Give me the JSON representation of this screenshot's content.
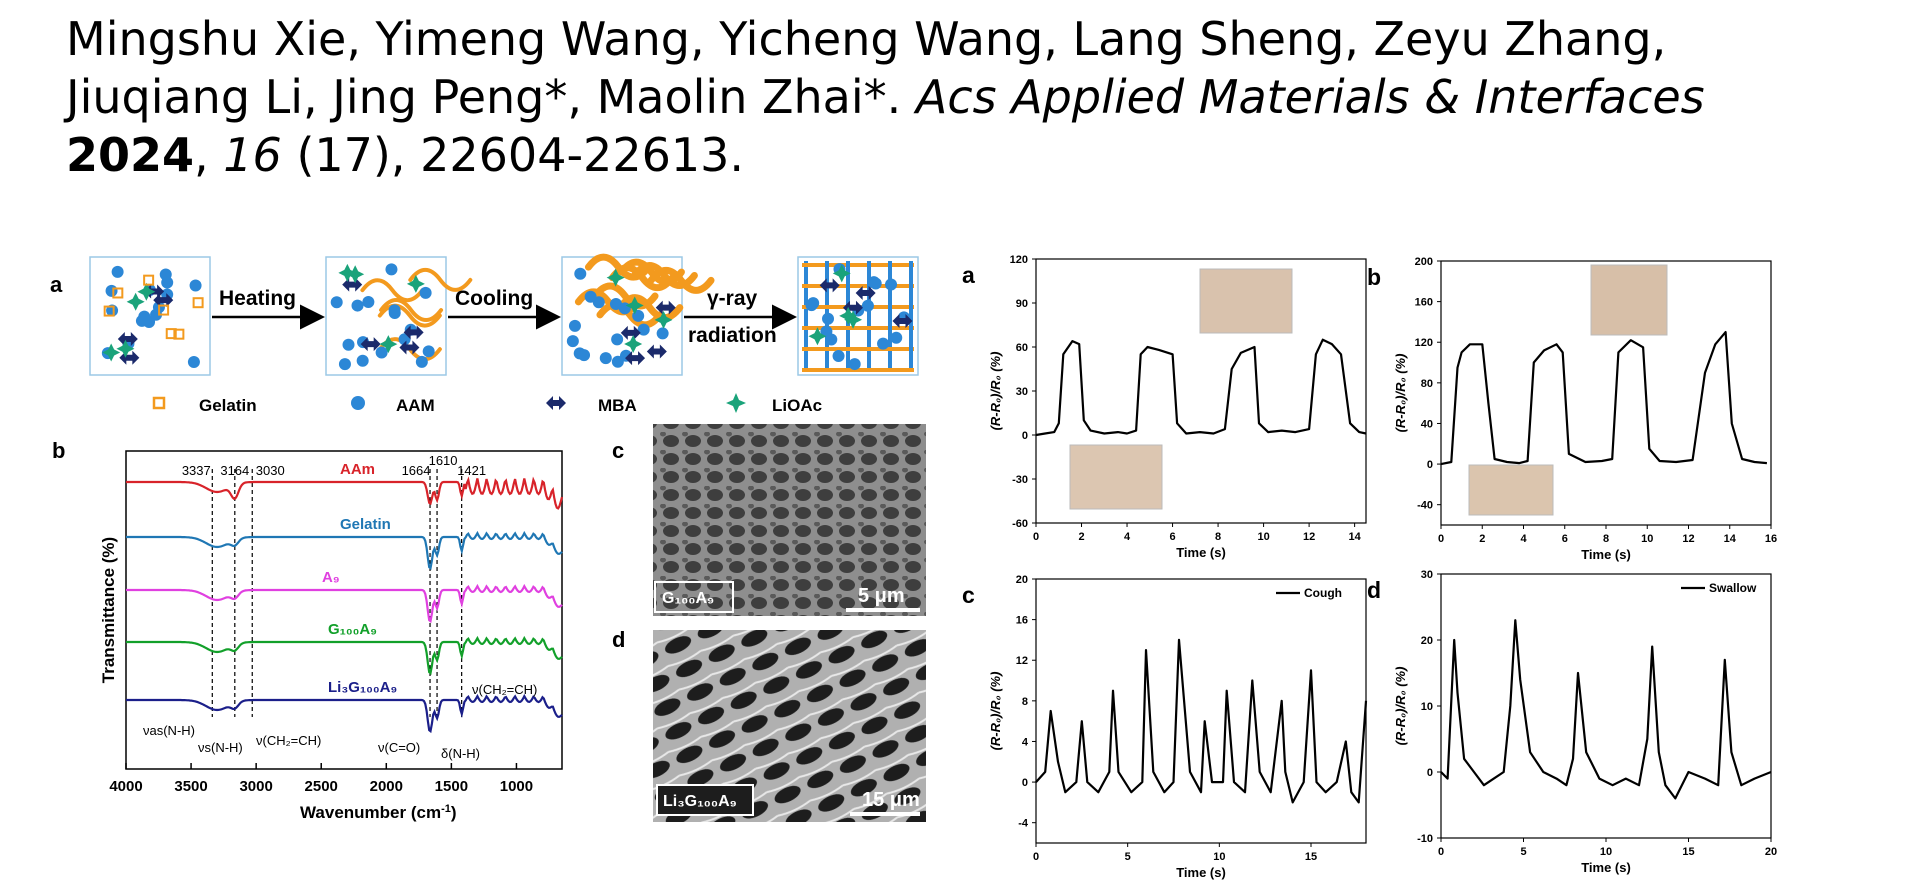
{
  "citation": {
    "authors": "Mingshu Xie, Yimeng Wang, Yicheng Wang, Lang Sheng, Zeyu Zhang, Jiuqiang Li, Jing Peng*, Maolin Zhai*.",
    "journal": "Acs Applied Materials & Interfaces",
    "year": "2024",
    "volume": "16",
    "issue_pages": "(17), 22604-22613."
  },
  "scheme": {
    "panel": "a",
    "steps": [
      "Heating",
      "Cooling",
      "γ-ray",
      "radiation"
    ],
    "legend": [
      "Gelatin",
      "AAM",
      "MBA",
      "LiOAc"
    ],
    "colors": {
      "gelatin": "#f39a1e",
      "aam": "#2c87d6",
      "mba": "#1b2a6b",
      "lioac": "#1aa37a",
      "chain": "#f39a1e"
    }
  },
  "ftir": {
    "panel": "b",
    "ylabel": "Transmittance (%)",
    "xlabel": "Wavenumber (cm",
    "xlabel_sup": "-1",
    "xlabel_end": ")",
    "xticks": [
      "4000",
      "3500",
      "3000",
      "2500",
      "2000",
      "1500",
      "1000"
    ],
    "peaks": [
      "3337",
      "3164",
      "3030",
      "1664",
      "1610",
      "1421"
    ],
    "series": [
      {
        "name": "AAm",
        "color": "#d8232a"
      },
      {
        "name": "Gelatin",
        "color": "#1f77b4"
      },
      {
        "name": "A₉",
        "color": "#e040e0"
      },
      {
        "name": "G₁₀₀A₉",
        "color": "#12a02a"
      },
      {
        "name": "Li₃G₁₀₀A₉",
        "color": "#1b1f8a"
      }
    ],
    "annotations": [
      "νas(N-H)",
      "νs(N-H)",
      "ν(CH₂=CH)",
      "ν(C=O)",
      "δ(N-H)",
      "ν(CH₂=CH)"
    ]
  },
  "sem": {
    "c": {
      "panel": "c",
      "label": "G₁₀₀A₉",
      "scale": "5 μm"
    },
    "d": {
      "panel": "d",
      "label": "Li₃G₁₀₀A₉",
      "scale": "15 μm"
    }
  },
  "chart_data": [
    {
      "type": "line",
      "panel": "a",
      "xlabel": "Time (s)",
      "ylabel": "(R-R₀)/R₀ (%)",
      "xlim": [
        0,
        14.5
      ],
      "ylim": [
        -60,
        120
      ],
      "xticks": [
        0,
        2,
        4,
        6,
        8,
        10,
        12,
        14
      ],
      "yticks": [
        -60,
        -30,
        0,
        30,
        60,
        90,
        120
      ],
      "x": [
        0,
        0.4,
        0.8,
        1.0,
        1.2,
        1.6,
        1.9,
        2.1,
        2.4,
        3.0,
        3.6,
        4.0,
        4.4,
        4.6,
        4.9,
        5.4,
        6.0,
        6.2,
        6.6,
        7.2,
        7.8,
        8.3,
        8.6,
        9.0,
        9.6,
        9.8,
        10.2,
        10.8,
        11.4,
        12.0,
        12.3,
        12.6,
        13.0,
        13.4,
        13.8,
        14.2,
        14.5
      ],
      "y": [
        0,
        1,
        2,
        8,
        55,
        64,
        62,
        10,
        3,
        1,
        2,
        1,
        3,
        55,
        60,
        58,
        55,
        8,
        1,
        2,
        1,
        4,
        45,
        56,
        60,
        8,
        2,
        3,
        2,
        4,
        55,
        65,
        62,
        55,
        8,
        2,
        1
      ]
    },
    {
      "type": "line",
      "panel": "b",
      "xlabel": "Time (s)",
      "ylabel": "(R-R₀)/R₀ (%)",
      "xlim": [
        0,
        16
      ],
      "ylim": [
        -60,
        200
      ],
      "xticks": [
        0,
        2,
        4,
        6,
        8,
        10,
        12,
        14,
        16
      ],
      "yticks": [
        -40,
        0,
        40,
        80,
        120,
        160,
        200
      ],
      "x": [
        0,
        0.5,
        0.8,
        1.0,
        1.4,
        2.0,
        2.3,
        2.6,
        3.2,
        3.8,
        4.2,
        4.5,
        5.0,
        5.6,
        5.9,
        6.2,
        7.0,
        7.8,
        8.3,
        8.6,
        9.2,
        9.8,
        10.1,
        10.6,
        11.4,
        12.2,
        12.8,
        13.3,
        13.8,
        14.1,
        14.6,
        15.2,
        15.8
      ],
      "y": [
        0,
        2,
        95,
        110,
        118,
        118,
        60,
        5,
        2,
        1,
        3,
        100,
        112,
        118,
        110,
        10,
        2,
        3,
        5,
        110,
        122,
        115,
        15,
        3,
        2,
        4,
        90,
        118,
        130,
        40,
        5,
        2,
        1
      ]
    },
    {
      "type": "line",
      "panel": "c",
      "legend": "Cough",
      "xlabel": "Time (s)",
      "ylabel": "(R-R₀)/R₀ (%)",
      "xlim": [
        0,
        18
      ],
      "ylim": [
        -6,
        20
      ],
      "xticks": [
        0,
        5,
        10,
        15
      ],
      "yticks": [
        -4,
        0,
        4,
        8,
        12,
        16,
        20
      ],
      "x": [
        0,
        0.5,
        0.8,
        1.2,
        1.6,
        2.2,
        2.5,
        2.8,
        3.4,
        4.0,
        4.2,
        4.5,
        5.2,
        5.8,
        6.0,
        6.4,
        7.0,
        7.5,
        7.8,
        8.4,
        9.0,
        9.2,
        9.6,
        10.2,
        10.4,
        10.8,
        11.4,
        11.8,
        12.2,
        12.8,
        13.4,
        13.6,
        14.0,
        14.6,
        15.0,
        15.3,
        15.8,
        16.4,
        16.9,
        17.2,
        17.6,
        18.0
      ],
      "y": [
        0,
        1,
        7,
        2,
        -1,
        0,
        6,
        0,
        -1,
        1,
        9,
        1,
        -1,
        0,
        13,
        1,
        -1,
        0,
        14,
        1,
        -1,
        6,
        0,
        0,
        9,
        0,
        -1,
        10,
        1,
        -1,
        8,
        1,
        -2,
        0,
        11,
        0,
        -1,
        0,
        4,
        -1,
        -2,
        8
      ]
    },
    {
      "type": "line",
      "panel": "d",
      "legend": "Swallow",
      "xlabel": "Time (s)",
      "ylabel": "(R-R₀)/R₀ (%)",
      "xlim": [
        0,
        20
      ],
      "ylim": [
        -10,
        30
      ],
      "xticks": [
        0,
        5,
        10,
        15,
        20
      ],
      "yticks": [
        -10,
        0,
        10,
        20,
        30
      ],
      "x": [
        0,
        0.4,
        0.8,
        1.0,
        1.4,
        2.0,
        2.6,
        3.2,
        3.8,
        4.2,
        4.5,
        4.8,
        5.4,
        6.2,
        7.0,
        7.6,
        8.0,
        8.3,
        8.8,
        9.6,
        10.4,
        11.2,
        12.0,
        12.5,
        12.8,
        13.2,
        13.6,
        14.2,
        15.0,
        16.0,
        16.8,
        17.2,
        17.6,
        18.2,
        19.0,
        20.0
      ],
      "y": [
        0,
        -1,
        20,
        12,
        2,
        0,
        -2,
        -1,
        0,
        10,
        23,
        14,
        3,
        0,
        -1,
        -2,
        2,
        15,
        3,
        -1,
        -2,
        -1,
        -2,
        5,
        19,
        3,
        -2,
        -4,
        0,
        -1,
        -2,
        17,
        3,
        -2,
        -1,
        0
      ]
    }
  ]
}
